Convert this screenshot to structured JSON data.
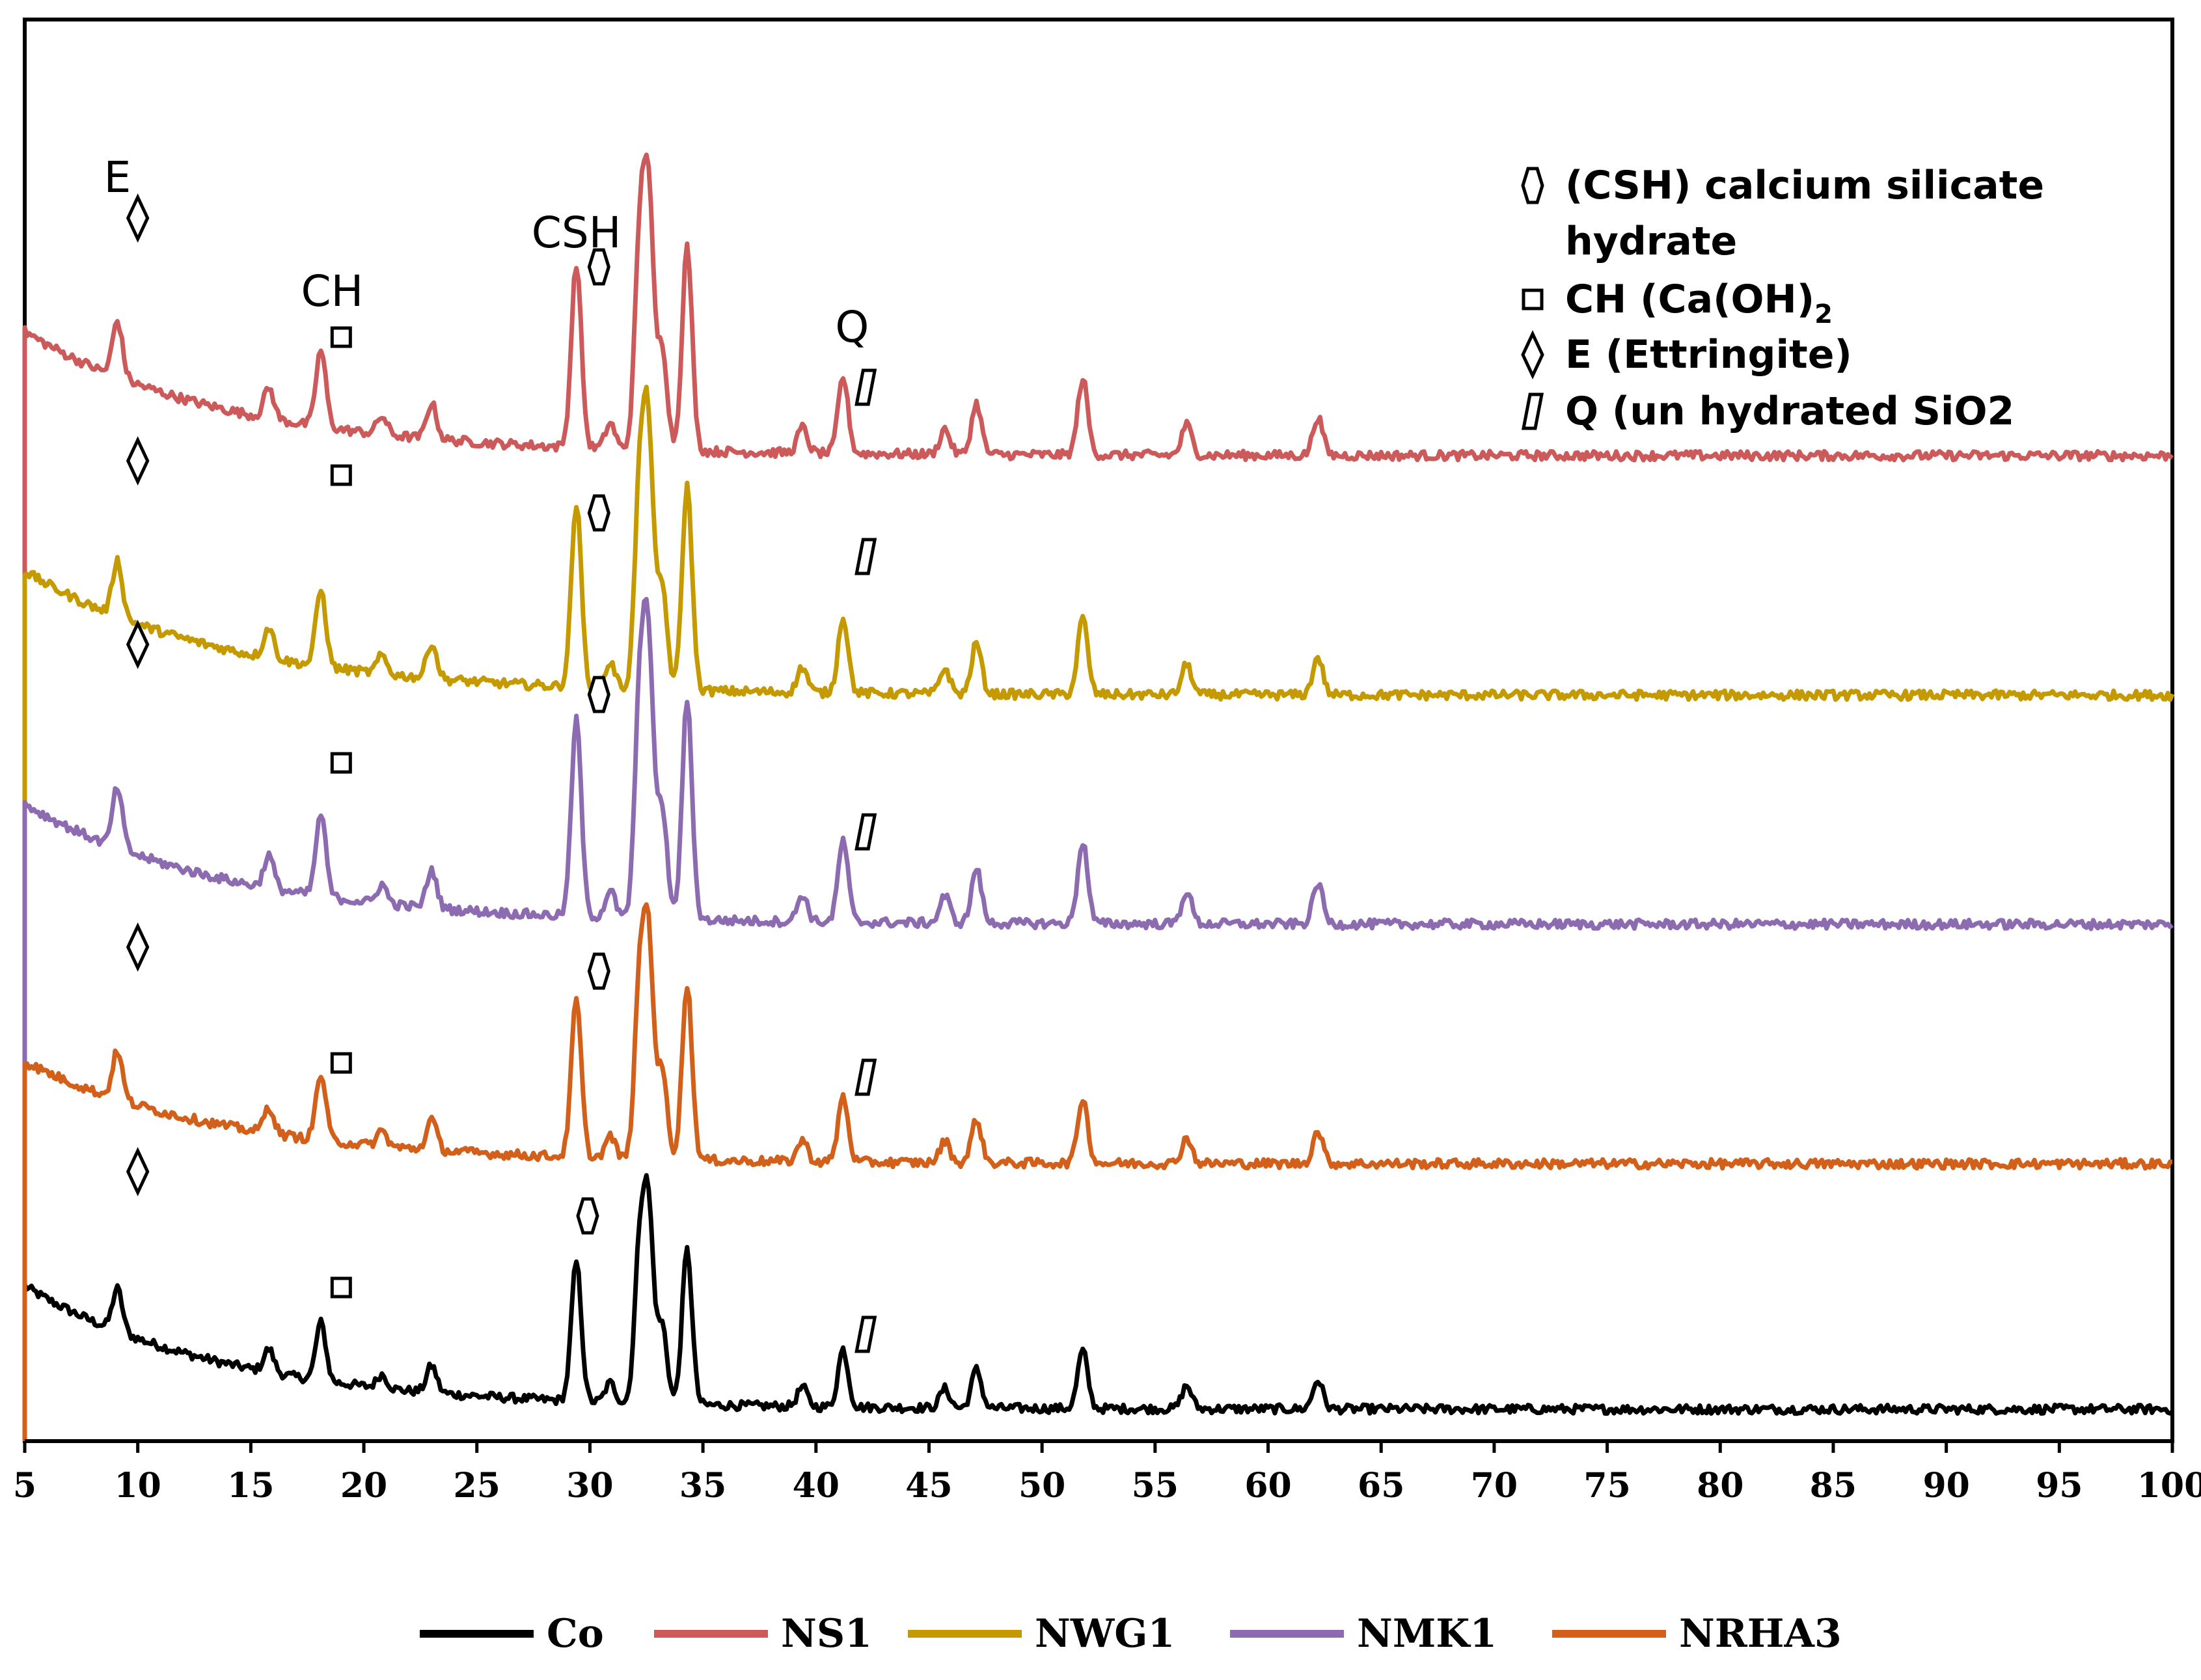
{
  "chart_data": {
    "type": "line",
    "title": "",
    "xlabel": "",
    "ylabel": "",
    "xlim": [
      5,
      100
    ],
    "x_ticks": [
      "5",
      "10",
      "15",
      "20",
      "25",
      "30",
      "35",
      "40",
      "45",
      "50",
      "55",
      "60",
      "65",
      "70",
      "75",
      "80",
      "85",
      "90",
      "95",
      "100"
    ],
    "legend_position": "bottom",
    "peaks_2theta": [
      9.1,
      15.8,
      18.1,
      20.8,
      23.0,
      29.4,
      30.9,
      32.2,
      32.6,
      33.2,
      34.3,
      39.4,
      41.2,
      45.7,
      47.1,
      51.8,
      56.4,
      62.2
    ],
    "series": [
      {
        "name": "Co",
        "color": "#000000",
        "start_level": 0.4,
        "end_level": 0.05,
        "peak_scale": 0.55
      },
      {
        "name": "NS1",
        "color": "#CC5A5A",
        "start_level": 0.44,
        "end_level": 0.1,
        "peak_scale": 0.7
      },
      {
        "name": "NWG1",
        "color": "#C49A00",
        "start_level": 0.42,
        "end_level": 0.08,
        "peak_scale": 0.7
      },
      {
        "name": "NMK1",
        "color": "#8C6BB1",
        "start_level": 0.4,
        "end_level": 0.07,
        "peak_scale": 0.75
      },
      {
        "name": "NRHA3",
        "color": "#D2601A",
        "start_level": 0.38,
        "end_level": 0.1,
        "peak_scale": 0.6
      }
    ],
    "peak_labels": [
      {
        "text": "E",
        "x": 9.1
      },
      {
        "text": "CH",
        "x": 18.6
      },
      {
        "text": "CSH",
        "x": 29.4
      },
      {
        "text": "Q",
        "x": 41.6
      }
    ],
    "phase_markers": [
      {
        "phase": "E",
        "x": 10.0
      },
      {
        "phase": "CH",
        "x": 19.0
      },
      {
        "phase": "CSH",
        "x": 30.4
      },
      {
        "phase": "Q",
        "x": 42.2
      }
    ],
    "phase_key": [
      {
        "symbol": "hexagon",
        "lines": [
          "(CSH) calcium silicate",
          "hydrate"
        ]
      },
      {
        "symbol": "square",
        "text": "CH (Ca(OH)",
        "subscript": "2"
      },
      {
        "symbol": "diamond",
        "text": "E (Ettringite)"
      },
      {
        "symbol": "slanted",
        "text": "Q (un hydrated SiO2"
      }
    ]
  }
}
